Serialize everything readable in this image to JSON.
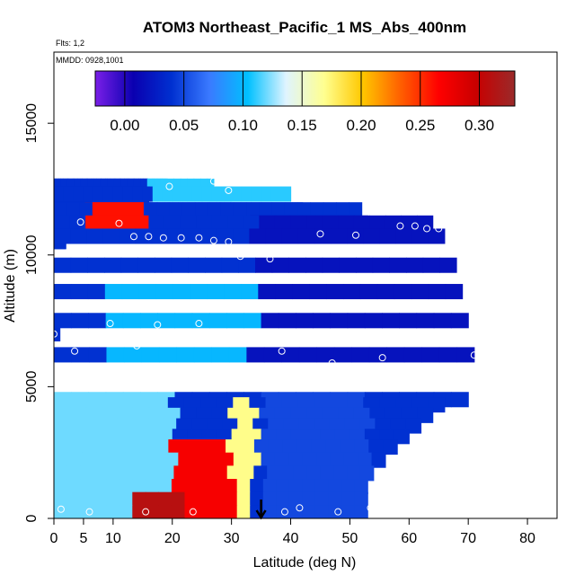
{
  "chart_data": {
    "type": "heatmap",
    "title": "ATOM3 Northeast_Pacific_1 MS_Abs_400nm",
    "flights_note": "Flts: 1,2",
    "date_note": "MMDD: 0928,1001",
    "xlabel": "Latitude (deg N)",
    "ylabel": "Altitude (m)",
    "xlim": [
      0,
      85
    ],
    "ylim": [
      0,
      17700
    ],
    "x_ticks": [
      0,
      5,
      10,
      20,
      30,
      40,
      50,
      60,
      70,
      80
    ],
    "y_ticks": [
      0,
      5000,
      10000,
      15000
    ],
    "colorbar": {
      "min": -0.025,
      "max": 0.33,
      "ticks": [
        0.0,
        0.05,
        0.1,
        0.15,
        0.2,
        0.25,
        0.3
      ],
      "tick_labels": [
        "0.00",
        "0.05",
        "0.10",
        "0.15",
        "0.20",
        "0.25",
        "0.30"
      ],
      "colors": [
        "#7a1fe8",
        "#0a00b0",
        "#0030d0",
        "#3a7aff",
        "#00c0ff",
        "#dff4ff",
        "#ffff90",
        "#ffc800",
        "#ff6000",
        "#ff0000",
        "#c80000",
        "#9a2a2a"
      ]
    },
    "arrow_latitude": 35,
    "column_tops_m": [
      [
        0,
        0,
        0
      ],
      [
        1,
        7300,
        0
      ],
      [
        2,
        10800,
        0
      ],
      [
        4,
        11500,
        0
      ],
      [
        6,
        11900,
        0
      ],
      [
        14,
        11900,
        0
      ],
      [
        16,
        12400,
        0
      ],
      [
        19,
        12900,
        0
      ],
      [
        27,
        12900,
        0
      ],
      [
        30,
        12600,
        0
      ],
      [
        40,
        12600,
        0
      ],
      [
        42,
        12000,
        0
      ],
      [
        52,
        12000,
        0
      ],
      [
        53,
        11500,
        0
      ],
      [
        64,
        11500,
        0
      ],
      [
        66,
        11000,
        0
      ],
      [
        68,
        9900,
        0
      ],
      [
        69,
        8900,
        0
      ],
      [
        70,
        7800,
        0
      ],
      [
        71,
        6500,
        0
      ],
      [
        70,
        4800,
        200
      ],
      [
        66,
        4600,
        800
      ],
      [
        64,
        4200,
        1300
      ],
      [
        62,
        3800,
        1800
      ],
      [
        60,
        3400,
        2300
      ],
      [
        58,
        3000,
        2700
      ],
      [
        56,
        2500,
        3200
      ],
      [
        54,
        2000,
        3700
      ],
      [
        53,
        1500,
        4000
      ],
      [
        53,
        1000,
        4400
      ],
      [
        53,
        500,
        4700
      ],
      [
        53,
        0,
        5000
      ]
    ],
    "value_field": [
      {
        "lat": [
          0,
          20
        ],
        "alt": [
          0,
          6000
        ],
        "value": 0.12
      },
      {
        "lat": [
          20,
          30
        ],
        "alt": [
          0,
          3000
        ],
        "value": 0.27
      },
      {
        "lat": [
          14,
          22
        ],
        "alt": [
          0,
          800
        ],
        "value": 0.31
      },
      {
        "lat": [
          30,
          34
        ],
        "alt": [
          0,
          4500
        ],
        "value": 0.17
      },
      {
        "lat": [
          35,
          53
        ],
        "alt": [
          0,
          4800
        ],
        "value": 0.05
      },
      {
        "lat": [
          10,
          34
        ],
        "alt": [
          6000,
          9500
        ],
        "value": 0.1
      },
      {
        "lat": [
          34,
          71
        ],
        "alt": [
          6000,
          11500
        ],
        "value": 0.02
      },
      {
        "lat": [
          6,
          16
        ],
        "alt": [
          10800,
          12000
        ],
        "value": 0.26
      },
      {
        "lat": [
          16,
          40
        ],
        "alt": [
          11800,
          12900
        ],
        "value": 0.11
      },
      {
        "lat": [
          2,
          70
        ],
        "alt": [
          6300,
          6900
        ],
        "value": -0.01
      }
    ],
    "sample_points": [
      [
        0,
        7000
      ],
      [
        1.2,
        350
      ],
      [
        2.5,
        6800
      ],
      [
        3.5,
        6350
      ],
      [
        4.5,
        11250
      ],
      [
        6,
        250
      ],
      [
        9.5,
        7400
      ],
      [
        11,
        11200
      ],
      [
        13.5,
        10700
      ],
      [
        14,
        6550
      ],
      [
        15.5,
        250
      ],
      [
        16,
        10700
      ],
      [
        17.5,
        7350
      ],
      [
        18.5,
        10650
      ],
      [
        19.5,
        12600
      ],
      [
        21.5,
        6750
      ],
      [
        21.5,
        10650
      ],
      [
        23.5,
        250
      ],
      [
        24.5,
        7400
      ],
      [
        24.5,
        10650
      ],
      [
        27,
        12800
      ],
      [
        27,
        10550
      ],
      [
        29.5,
        12450
      ],
      [
        29.5,
        10500
      ],
      [
        31.5,
        9950
      ],
      [
        36.5,
        9850
      ],
      [
        37.5,
        10250
      ],
      [
        38.5,
        6350
      ],
      [
        39,
        250
      ],
      [
        39,
        5600
      ],
      [
        40.5,
        10250
      ],
      [
        41,
        5500
      ],
      [
        41.5,
        400
      ],
      [
        43,
        6700
      ],
      [
        45,
        10800
      ],
      [
        47,
        5900
      ],
      [
        48,
        250
      ],
      [
        49.5,
        6800
      ],
      [
        51,
        10750
      ],
      [
        52.5,
        5450
      ],
      [
        53.5,
        400
      ],
      [
        55.5,
        6100
      ],
      [
        58.5,
        11100
      ],
      [
        61,
        11100
      ],
      [
        63,
        11000
      ],
      [
        65,
        11000
      ],
      [
        68,
        10900
      ],
      [
        71,
        6200
      ]
    ]
  }
}
